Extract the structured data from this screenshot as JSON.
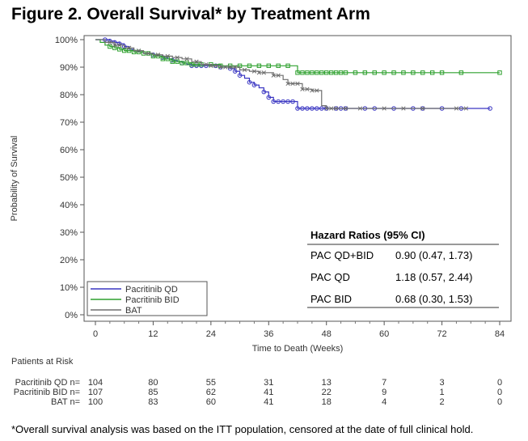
{
  "title": "Figure 2. Overall Survival* by Treatment Arm",
  "footnote": "*Overall survival analysis was based on the ITT population, censored at the date of full clinical hold.",
  "chart_data": {
    "type": "line",
    "title": "Figure 2. Overall Survival* by Treatment Arm",
    "xlabel": "Time to Death (Weeks)",
    "ylabel": "Probability of Survival",
    "xlim": [
      0,
      84
    ],
    "ylim": [
      0,
      100
    ],
    "x_ticks": [
      0,
      12,
      24,
      36,
      48,
      60,
      72,
      84
    ],
    "y_ticks": [
      0,
      10,
      20,
      30,
      40,
      50,
      60,
      70,
      80,
      90,
      100
    ],
    "x_tick_labels": [
      "0",
      "12",
      "24",
      "36",
      "48",
      "60",
      "72",
      "84"
    ],
    "y_tick_labels": [
      "0%",
      "10%",
      "20%",
      "30%",
      "40%",
      "50%",
      "60%",
      "70%",
      "80%",
      "90%",
      "100%"
    ],
    "legend_position": "bottom-left",
    "series": [
      {
        "name": "Pacritinib QD",
        "color": "#3a36c2",
        "marker": "circle",
        "points": [
          [
            0,
            100
          ],
          [
            2,
            100
          ],
          [
            3,
            99.5
          ],
          [
            4,
            99
          ],
          [
            5,
            98.5
          ],
          [
            6,
            97.5
          ],
          [
            7,
            96.5
          ],
          [
            8,
            96
          ],
          [
            9,
            95.5
          ],
          [
            10,
            95
          ],
          [
            12,
            94.5
          ],
          [
            13,
            94
          ],
          [
            14,
            93.5
          ],
          [
            15,
            93
          ],
          [
            16,
            92.5
          ],
          [
            17,
            92
          ],
          [
            18,
            91.5
          ],
          [
            19,
            91
          ],
          [
            20,
            90.5
          ],
          [
            22,
            90.5
          ],
          [
            24,
            90.5
          ],
          [
            26,
            90
          ],
          [
            28,
            89.5
          ],
          [
            29,
            88.5
          ],
          [
            30,
            87
          ],
          [
            31,
            86
          ],
          [
            32,
            84.5
          ],
          [
            33,
            83.5
          ],
          [
            34,
            82.5
          ],
          [
            35,
            81
          ],
          [
            36,
            79
          ],
          [
            37,
            77.5
          ],
          [
            38,
            77.5
          ],
          [
            40,
            77.5
          ],
          [
            41,
            77.5
          ],
          [
            42,
            75
          ],
          [
            44,
            75
          ],
          [
            46,
            75
          ],
          [
            48,
            75
          ],
          [
            52,
            75
          ],
          [
            56,
            75
          ],
          [
            60,
            75
          ],
          [
            64,
            75
          ],
          [
            68,
            75
          ],
          [
            72,
            75
          ],
          [
            76,
            75
          ],
          [
            80,
            75
          ],
          [
            82,
            75
          ]
        ],
        "censored": [
          2,
          3,
          4,
          5,
          6,
          12,
          14,
          16,
          18,
          20,
          21,
          22,
          23,
          25,
          26,
          28,
          29,
          30,
          32,
          33,
          35,
          36,
          37,
          38,
          39,
          40,
          41,
          42,
          43,
          44,
          45,
          46,
          47,
          48,
          50,
          51,
          52,
          56,
          58,
          62,
          66,
          68,
          72,
          76,
          82
        ]
      },
      {
        "name": "Pacritinib BID",
        "color": "#2ea02e",
        "marker": "square",
        "points": [
          [
            0,
            100
          ],
          [
            1,
            99
          ],
          [
            2,
            98
          ],
          [
            3,
            97.5
          ],
          [
            4,
            97
          ],
          [
            5,
            96.5
          ],
          [
            6,
            96
          ],
          [
            8,
            95.5
          ],
          [
            10,
            95
          ],
          [
            12,
            94
          ],
          [
            14,
            93
          ],
          [
            16,
            92
          ],
          [
            18,
            91.5
          ],
          [
            20,
            91
          ],
          [
            22,
            91
          ],
          [
            24,
            91
          ],
          [
            26,
            90.5
          ],
          [
            28,
            90.5
          ],
          [
            32,
            90.5
          ],
          [
            36,
            90.5
          ],
          [
            40,
            90.5
          ],
          [
            42,
            88
          ],
          [
            46,
            88
          ],
          [
            50,
            88
          ],
          [
            56,
            88
          ],
          [
            62,
            88
          ],
          [
            70,
            88
          ],
          [
            76,
            88
          ],
          [
            84,
            88
          ]
        ],
        "censored": [
          3,
          4,
          5,
          6,
          7,
          8,
          9,
          10,
          11,
          12,
          13,
          14,
          15,
          16,
          17,
          18,
          19,
          20,
          21,
          22,
          24,
          26,
          28,
          30,
          32,
          34,
          36,
          38,
          40,
          42,
          43,
          44,
          45,
          46,
          47,
          48,
          49,
          50,
          51,
          52,
          54,
          56,
          58,
          60,
          62,
          64,
          66,
          68,
          70,
          72,
          76,
          84
        ]
      },
      {
        "name": "BAT",
        "color": "#6e6e6e",
        "marker": "x",
        "points": [
          [
            0,
            100
          ],
          [
            2,
            99
          ],
          [
            4,
            98
          ],
          [
            6,
            97
          ],
          [
            8,
            96
          ],
          [
            10,
            95
          ],
          [
            12,
            94.5
          ],
          [
            14,
            94
          ],
          [
            16,
            93.5
          ],
          [
            18,
            93
          ],
          [
            20,
            92
          ],
          [
            22,
            91
          ],
          [
            24,
            90.5
          ],
          [
            26,
            90
          ],
          [
            28,
            90
          ],
          [
            30,
            89
          ],
          [
            32,
            88.5
          ],
          [
            34,
            88
          ],
          [
            36,
            88
          ],
          [
            37,
            87
          ],
          [
            39,
            85.5
          ],
          [
            40,
            84
          ],
          [
            42,
            84
          ],
          [
            43,
            82
          ],
          [
            45,
            81.5
          ],
          [
            46,
            81.5
          ],
          [
            47,
            76
          ],
          [
            48,
            75
          ],
          [
            50,
            75
          ],
          [
            54,
            75
          ],
          [
            58,
            75
          ],
          [
            62,
            75
          ],
          [
            66,
            75
          ],
          [
            70,
            75
          ],
          [
            74,
            75
          ],
          [
            77,
            75
          ]
        ],
        "censored": [
          3,
          4,
          5,
          7,
          9,
          11,
          13,
          15,
          17,
          19,
          21,
          23,
          24,
          25,
          26,
          27,
          28,
          29,
          31,
          33,
          34,
          35,
          37,
          38,
          40,
          41,
          42,
          43,
          44,
          45,
          46,
          48,
          49,
          50,
          52,
          55,
          60,
          64,
          68,
          75,
          77
        ]
      }
    ],
    "hazard_ratios": {
      "title": "Hazard Ratios (95% CI)",
      "rows": [
        {
          "label": "PAC QD+BID",
          "value": "0.90 (0.47, 1.73)"
        },
        {
          "label": "PAC QD",
          "value": "1.18 (0.57, 2.44)"
        },
        {
          "label": "PAC BID",
          "value": "0.68 (0.30, 1.53)"
        }
      ]
    },
    "risk_table": {
      "title": "Patients at Risk",
      "timepoints": [
        0,
        12,
        24,
        36,
        48,
        60,
        72,
        84
      ],
      "rows": [
        {
          "label": "Pacritinib QD n=",
          "values": [
            "104",
            "80",
            "55",
            "31",
            "13",
            "7",
            "3",
            "0"
          ]
        },
        {
          "label": "Pacritinib BID n=",
          "values": [
            "107",
            "85",
            "62",
            "41",
            "22",
            "9",
            "1",
            "0"
          ]
        },
        {
          "label": "BAT n=",
          "values": [
            "100",
            "83",
            "60",
            "41",
            "18",
            "4",
            "2",
            "0"
          ]
        }
      ]
    }
  }
}
